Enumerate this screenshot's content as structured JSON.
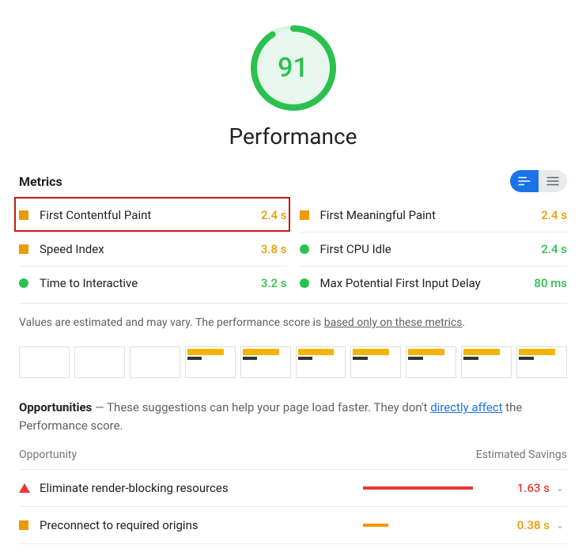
{
  "score": {
    "value": "91",
    "color": "#2ac14f",
    "ring_bg": "#e7f7ed",
    "percent": 91
  },
  "category_title": "Performance",
  "metrics_heading": "Metrics",
  "metrics": [
    {
      "name": "First Contentful Paint",
      "value": "2.4 s",
      "status": "orange",
      "shape": "square",
      "highlighted": true
    },
    {
      "name": "First Meaningful Paint",
      "value": "2.4 s",
      "status": "orange",
      "shape": "square"
    },
    {
      "name": "Speed Index",
      "value": "3.8 s",
      "status": "orange",
      "shape": "square"
    },
    {
      "name": "First CPU Idle",
      "value": "2.4 s",
      "status": "green",
      "shape": "circle"
    },
    {
      "name": "Time to Interactive",
      "value": "3.2 s",
      "status": "green",
      "shape": "circle"
    },
    {
      "name": "Max Potential First Input Delay",
      "value": "80 ms",
      "status": "green",
      "shape": "circle"
    }
  ],
  "metrics_note_pre": "Values are estimated and may vary. The performance score is ",
  "metrics_note_link": "based only on these metrics",
  "metrics_note_post": ".",
  "filmstrip_frames": 10,
  "filmstrip_loaded_from_index": 3,
  "opportunities": {
    "heading": "Opportunities",
    "intro_pre": " — These suggestions can help your page load faster. They don't ",
    "intro_link": "directly affect",
    "intro_post": " the Performance score.",
    "col_left": "Opportunity",
    "col_right": "Estimated Savings",
    "max_savings_seconds": 2.0,
    "items": [
      {
        "name": "Eliminate render-blocking resources",
        "savings": "1.63 s",
        "savings_seconds": 1.63,
        "status": "red",
        "shape": "triangle",
        "bar_color": "#e53935"
      },
      {
        "name": "Preconnect to required origins",
        "savings": "0.38 s",
        "savings_seconds": 0.38,
        "status": "orange",
        "shape": "square",
        "bar_color": "#ef9900"
      }
    ]
  },
  "colors": {
    "orange": "#ef9900",
    "green": "#2ac14f",
    "red": "#e53935",
    "link": "#1a73e8",
    "highlight_border": "#c61a1a",
    "toggle_active": "#1a73e8",
    "toggle_inactive": "#e8eaed"
  }
}
